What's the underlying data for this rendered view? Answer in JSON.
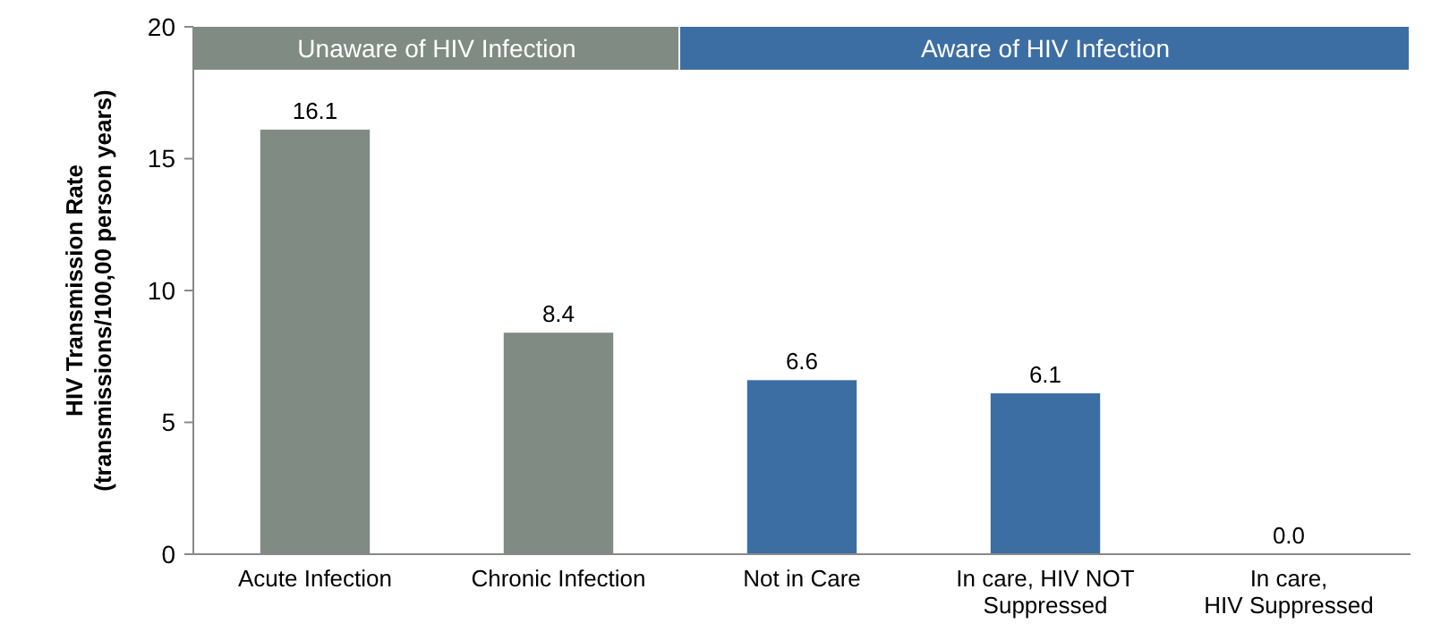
{
  "chart_data": {
    "type": "bar",
    "ylabel": "HIV Transmission Rate\n(transmissions/100,00 person years)",
    "categories": [
      "Acute Infection",
      "Chronic Infection",
      "Not in Care",
      "In care, HIV NOT\nSuppressed",
      "In care,\nHIV Suppressed"
    ],
    "values": [
      16.1,
      8.4,
      6.6,
      6.1,
      0.0
    ],
    "value_labels": [
      "16.1",
      "8.4",
      "6.6",
      "6.1",
      "0.0"
    ],
    "colors": [
      "#7f8b83",
      "#7f8b83",
      "#3c6ea4",
      "#3c6ea4",
      "#3c6ea4"
    ],
    "ylim": [
      0,
      20
    ],
    "yticks": [
      0,
      5,
      10,
      15,
      20
    ],
    "grid": false,
    "annotations": [
      "Unaware of HIV Infection",
      "Aware of HIV Infection"
    ]
  }
}
